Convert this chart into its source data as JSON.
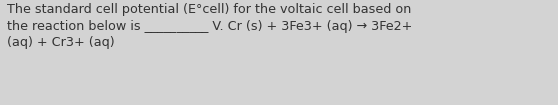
{
  "background_color": "#d3d3d3",
  "text_color": "#333333",
  "fontsize": 9.2,
  "fontweight": "normal",
  "line1": "The standard cell potential (E°cell) for the voltaic cell based on",
  "line2": "the reaction below is __________ V. Cr (s) + 3Fe3+ (aq) → 3Fe2+",
  "line3": "(aq) + Cr3+ (aq)"
}
